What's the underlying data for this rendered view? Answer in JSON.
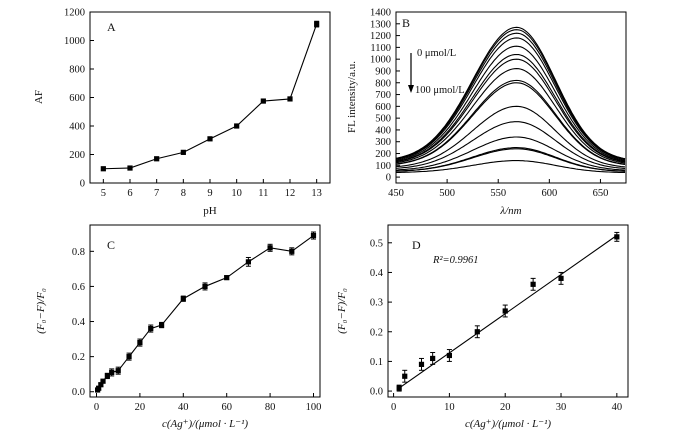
{
  "chart_data": [
    {
      "panel": "A",
      "type": "line",
      "xlabel": "pH",
      "ylabel": "AF",
      "xlim": [
        4.5,
        13.5
      ],
      "ylim": [
        0,
        1200
      ],
      "xticks": [
        5,
        6,
        7,
        8,
        9,
        10,
        11,
        12,
        13
      ],
      "yticks": [
        0,
        200,
        400,
        600,
        800,
        1000,
        1200
      ],
      "series": [
        {
          "x": [
            5,
            6,
            7,
            8,
            9,
            10,
            11,
            12,
            13
          ],
          "y": [
            100,
            105,
            170,
            215,
            310,
            400,
            575,
            590,
            1115
          ],
          "err": [
            0,
            0,
            0,
            0,
            0,
            0,
            0,
            0,
            20
          ]
        }
      ]
    },
    {
      "panel": "B",
      "type": "line",
      "xlabel": "λ/nm",
      "ylabel": "FL intensity/a.u.",
      "xlim": [
        450,
        675
      ],
      "ylim": [
        -50,
        1400
      ],
      "xticks": [
        450,
        500,
        550,
        600,
        650
      ],
      "yticks": [
        0,
        100,
        200,
        300,
        400,
        500,
        600,
        700,
        800,
        900,
        1000,
        1100,
        1200,
        1300,
        1400
      ],
      "peak_wavelength": 568,
      "series_peaks": [
        1270,
        1250,
        1220,
        1180,
        1110,
        1040,
        1000,
        920,
        820,
        800,
        600,
        470,
        340,
        250,
        240,
        140
      ],
      "annotations": [
        "0 μmol/L",
        "100 μmol/L"
      ]
    },
    {
      "panel": "C",
      "type": "line",
      "xlabel": "c(Ag⁺)/(μmol · L⁻¹)",
      "ylabel": "(F₀−F)/F₀",
      "xlim": [
        -3,
        103
      ],
      "ylim": [
        -0.03,
        0.95
      ],
      "xticks": [
        0,
        20,
        40,
        60,
        80,
        100
      ],
      "yticks": [
        0.0,
        0.2,
        0.4,
        0.6,
        0.8
      ],
      "series": [
        {
          "x": [
            0.5,
            1,
            2,
            3,
            5,
            7,
            10,
            15,
            20,
            25,
            30,
            40,
            50,
            60,
            70,
            80,
            90,
            100
          ],
          "y": [
            0.01,
            0.02,
            0.04,
            0.06,
            0.09,
            0.11,
            0.12,
            0.2,
            0.28,
            0.36,
            0.38,
            0.53,
            0.6,
            0.65,
            0.74,
            0.82,
            0.8,
            0.89
          ],
          "err": [
            0.01,
            0.01,
            0.01,
            0.01,
            0.015,
            0.02,
            0.02,
            0.02,
            0.02,
            0.02,
            0.015,
            0.015,
            0.02,
            0.01,
            0.025,
            0.02,
            0.02,
            0.02
          ]
        }
      ]
    },
    {
      "panel": "D",
      "type": "scatter",
      "xlabel": "c(Ag⁺)/(μmol · L⁻¹)",
      "ylabel": "(F₀−F)/F₀",
      "xlim": [
        -1,
        42
      ],
      "ylim": [
        -0.02,
        0.56
      ],
      "xticks": [
        0,
        10,
        20,
        30,
        40
      ],
      "yticks": [
        0.0,
        0.1,
        0.2,
        0.3,
        0.4,
        0.5
      ],
      "annotation": "R²=0.9961",
      "series": [
        {
          "x": [
            1,
            2,
            5,
            7,
            10,
            15,
            20,
            25,
            30,
            40
          ],
          "y": [
            0.01,
            0.05,
            0.09,
            0.11,
            0.12,
            0.2,
            0.27,
            0.36,
            0.38,
            0.52
          ],
          "err": [
            0.01,
            0.02,
            0.02,
            0.02,
            0.02,
            0.02,
            0.02,
            0.02,
            0.02,
            0.015
          ]
        }
      ],
      "fit_line": {
        "x": [
          1,
          40
        ],
        "y": [
          0.01,
          0.525
        ]
      }
    }
  ]
}
